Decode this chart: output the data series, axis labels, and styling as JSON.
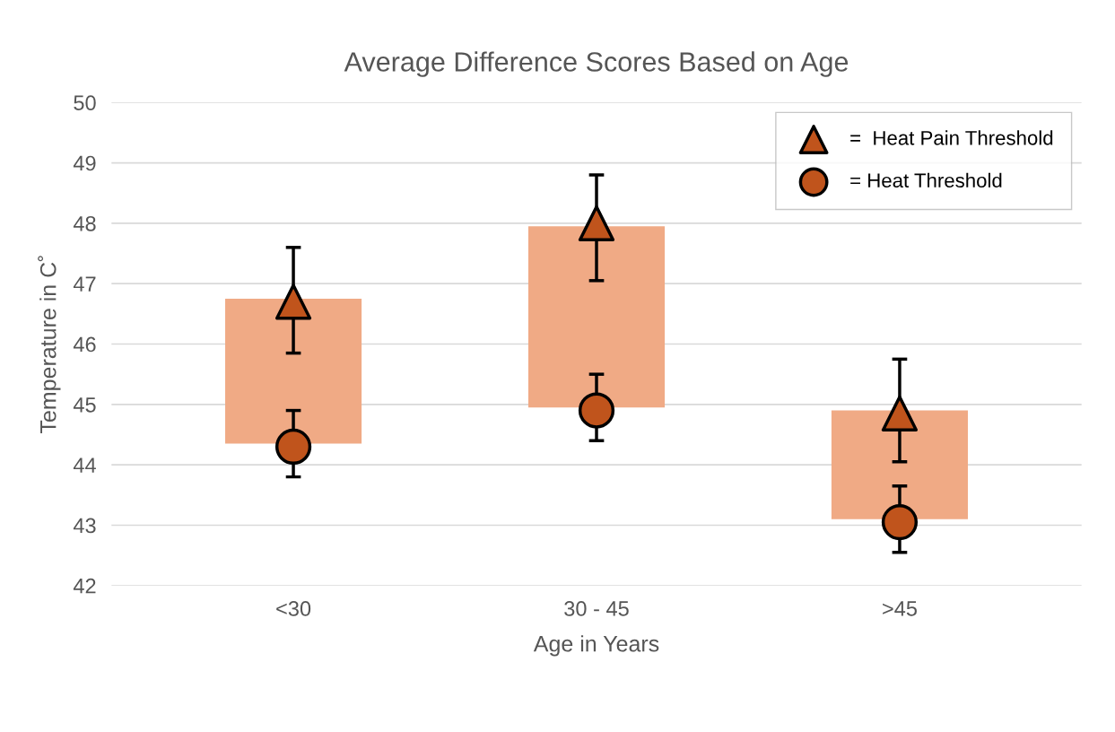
{
  "chart_data": {
    "type": "bar",
    "title": "Average Difference Scores Based on Age",
    "xlabel": "Age in Years",
    "ylabel": "Temperature in C˚",
    "categories": [
      "<30",
      "30 - 45",
      ">45"
    ],
    "ylim": [
      42,
      50
    ],
    "yticks": [
      42,
      43,
      44,
      45,
      46,
      47,
      48,
      49,
      50
    ],
    "grid": "y",
    "legend": "top right",
    "series": [
      {
        "color": "#f0aa85",
        "base": [
          44.35,
          44.95,
          43.1
        ],
        "values": [
          2.4,
          3.0,
          1.8
        ]
      },
      {
        "type": "scatter",
        "name": "=  Heat Pain Threshold",
        "marker": "triangle",
        "color": "#c0541c",
        "values": [
          46.7,
          48.0,
          44.85
        ],
        "errors": [
          [
            45.85,
            47.6
          ],
          [
            47.05,
            48.8
          ],
          [
            44.05,
            45.75
          ]
        ]
      },
      {
        "type": "scatter",
        "name": "= Heat Threshold",
        "marker": "circle",
        "color": "#c0541c",
        "values": [
          44.3,
          44.9,
          43.05
        ],
        "errors": [
          [
            43.8,
            44.9
          ],
          [
            44.4,
            45.5
          ],
          [
            42.55,
            43.65
          ]
        ]
      }
    ]
  }
}
